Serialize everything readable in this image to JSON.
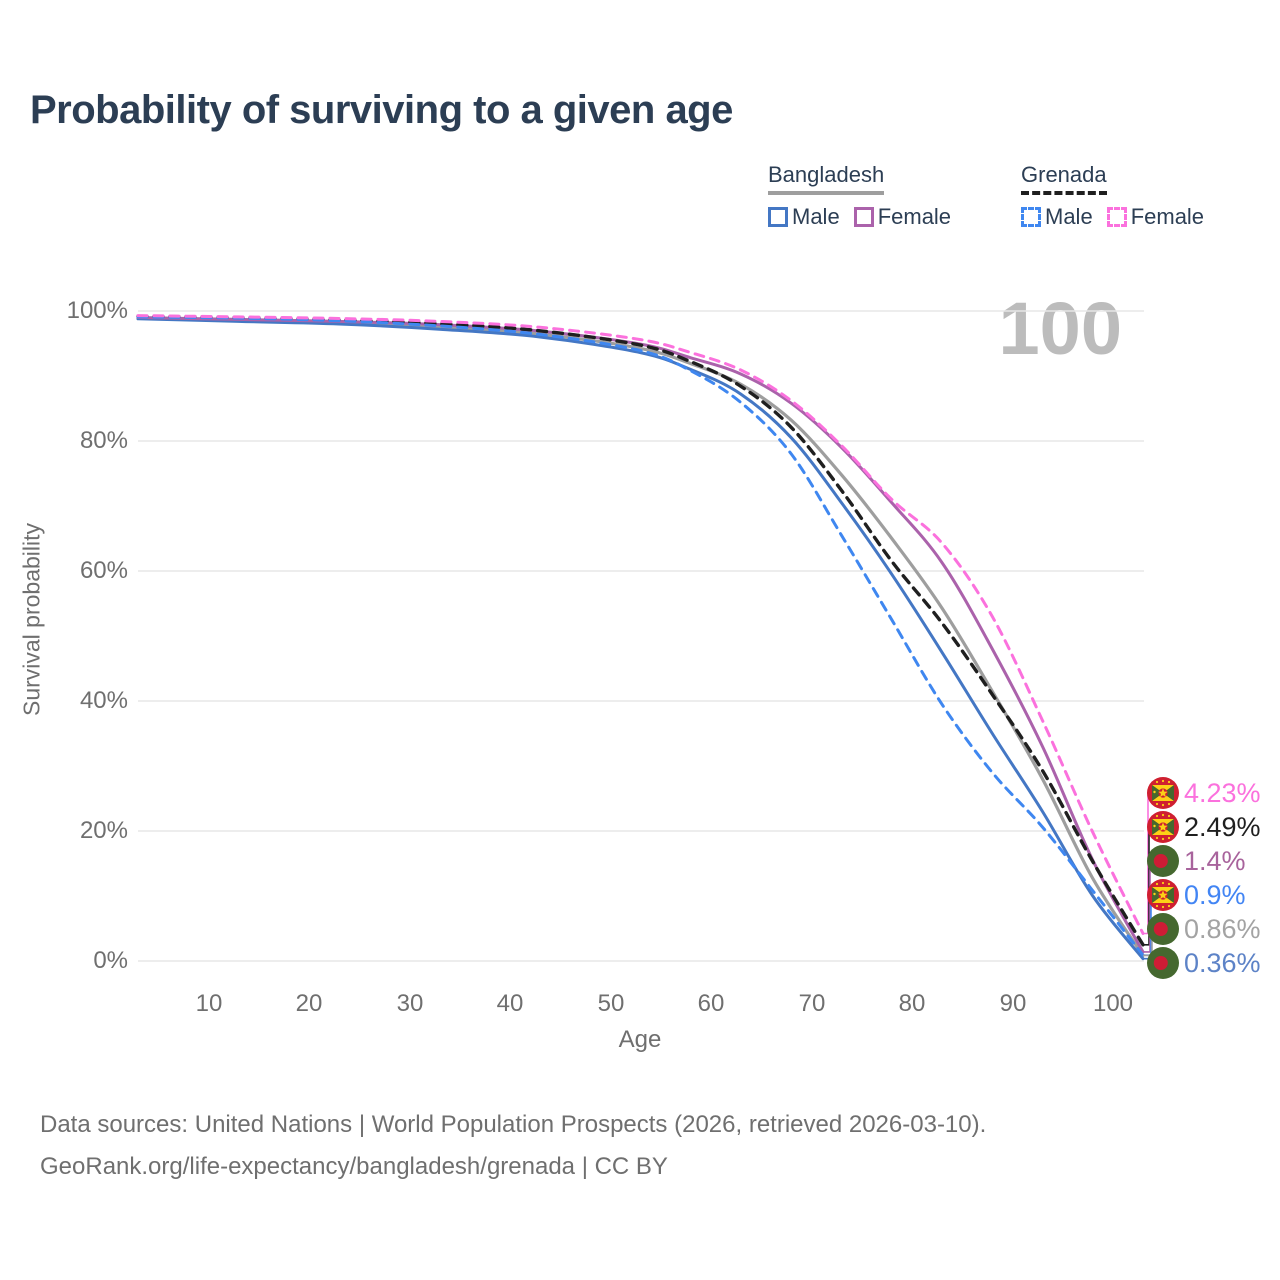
{
  "title": "Probability of surviving to a given age",
  "legend": {
    "groups": [
      {
        "country": "Bangladesh",
        "line_style": "solid",
        "underline_color": "#9e9e9e",
        "entries": [
          {
            "label": "Male",
            "color": "#4477c4"
          },
          {
            "label": "Female",
            "color": "#ab62ab"
          }
        ]
      },
      {
        "country": "Grenada",
        "line_style": "dashed",
        "underline_color": "#1f1f1f",
        "entries": [
          {
            "label": "Male",
            "color": "#3f87f0"
          },
          {
            "label": "Female",
            "color": "#fb71dd"
          }
        ]
      }
    ]
  },
  "chart_data": {
    "type": "line",
    "title": "Probability of surviving to a given age",
    "xlabel": "Age",
    "ylabel": "Survival probability",
    "xlim": [
      0,
      100
    ],
    "ylim": [
      0,
      100
    ],
    "grid": "horizontal-only",
    "legend_position": "top-right",
    "watermark": "100",
    "x_ticks": [
      "10",
      "20",
      "30",
      "40",
      "50",
      "60",
      "70",
      "80",
      "90",
      "100"
    ],
    "y_ticks": [
      "100%",
      "80%",
      "60%",
      "40%",
      "20%",
      "0%"
    ],
    "x": [
      0,
      10,
      20,
      30,
      40,
      50,
      55,
      60,
      65,
      70,
      75,
      80,
      85,
      90,
      95,
      100
    ],
    "series": [
      {
        "key": "bangladesh_male",
        "name": "Bangladesh Male",
        "color": "#4477c4",
        "dash": "solid",
        "values": [
          98.8,
          98.4,
          98.0,
          97.2,
          96.0,
          93.6,
          91.0,
          87.2,
          80.5,
          70.5,
          59.5,
          47.5,
          35.0,
          23.0,
          10.0,
          0.36
        ]
      },
      {
        "key": "bangladesh_female",
        "name": "Bangladesh Female",
        "color": "#ab62ab",
        "dash": "solid",
        "values": [
          99.0,
          98.7,
          98.4,
          97.9,
          96.9,
          94.9,
          92.8,
          90.3,
          85.8,
          79.0,
          70.5,
          61.3,
          48.0,
          33.0,
          15.5,
          1.4
        ]
      },
      {
        "key": "bangladesh_total",
        "name": "Bangladesh",
        "color": "#9e9e9e",
        "dash": "solid",
        "values": [
          98.9,
          98.55,
          98.2,
          97.55,
          96.45,
          94.25,
          91.9,
          88.7,
          83.2,
          74.8,
          65.0,
          54.3,
          41.5,
          28.0,
          12.7,
          0.86
        ]
      },
      {
        "key": "grenada_male",
        "name": "Grenada Male",
        "color": "#3f87f0",
        "dash": "dashed",
        "values": [
          99.1,
          98.9,
          98.5,
          97.7,
          96.4,
          93.9,
          90.8,
          85.9,
          78.0,
          65.5,
          52.5,
          39.5,
          29.0,
          20.6,
          10.8,
          0.9
        ]
      },
      {
        "key": "grenada_female",
        "name": "Grenada Female",
        "color": "#fb71dd",
        "dash": "dashed",
        "values": [
          99.3,
          99.1,
          98.85,
          98.4,
          97.5,
          95.6,
          93.6,
          90.9,
          86.2,
          79.3,
          71.0,
          64.3,
          53.0,
          37.0,
          19.8,
          4.23
        ]
      },
      {
        "key": "grenada_total",
        "name": "Grenada",
        "color": "#1f1f1f",
        "dash": "dashed",
        "values": [
          99.2,
          99.0,
          98.65,
          98.05,
          96.95,
          94.75,
          92.2,
          88.4,
          82.1,
          72.4,
          61.5,
          52.0,
          41.0,
          29.3,
          15.3,
          2.49
        ]
      }
    ]
  },
  "end_labels": [
    {
      "series": "grenada_female",
      "flag": "grenada",
      "value": "4.23%",
      "color": "#fb71dd"
    },
    {
      "series": "grenada_total",
      "flag": "grenada",
      "value": "2.49%",
      "color": "#1f1f1f"
    },
    {
      "series": "bangladesh_female",
      "flag": "bangladesh",
      "value": "1.4%",
      "color": "#a8639c"
    },
    {
      "series": "grenada_male",
      "flag": "grenada",
      "value": "0.9%",
      "color": "#4285f4"
    },
    {
      "series": "bangladesh_total",
      "flag": "bangladesh",
      "value": "0.86%",
      "color": "#a3a3a3"
    },
    {
      "series": "bangladesh_male",
      "flag": "bangladesh",
      "value": "0.36%",
      "color": "#5d83c7"
    }
  ],
  "footer": {
    "line1": "Data sources: United Nations | World Population Prospects (2026, retrieved 2026-03-10).",
    "line2": "GeoRank.org/life-expectancy/bangladesh/grenada | CC BY"
  }
}
